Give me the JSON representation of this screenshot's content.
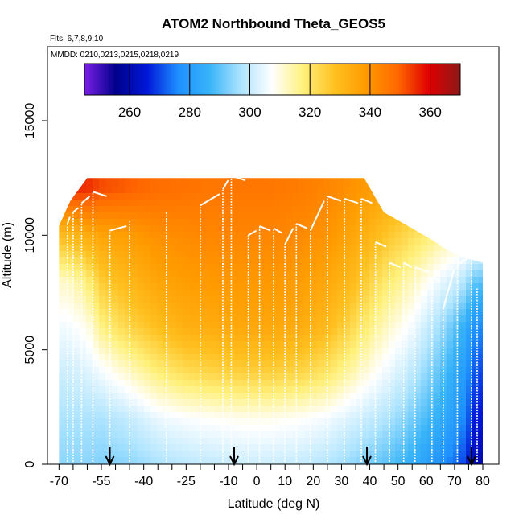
{
  "chart_data": {
    "type": "heatmap",
    "title": "ATOM2 Northbound Theta_GEOS5",
    "subtitle_flights": "Flts: 6,7,8,9,10",
    "subtitle_dates": "MMDD: 0210,0213,0215,0218,0219",
    "xlabel": "Latitude (deg N)",
    "ylabel": "Altitude (m)",
    "xlim": [
      -70,
      85
    ],
    "ylim": [
      0,
      18000
    ],
    "x_ticks": [
      "-70",
      "-55",
      "-40",
      "-25",
      "-10",
      "0",
      "10",
      "20",
      "30",
      "40",
      "50",
      "60",
      "70",
      "80"
    ],
    "x_tick_values": [
      -70,
      -55,
      -40,
      -25,
      -10,
      0,
      10,
      20,
      30,
      40,
      50,
      60,
      70,
      80
    ],
    "x_minor_ticks": [
      -65,
      -60,
      -50,
      -45,
      -35,
      -30,
      -20,
      -15,
      -5,
      5,
      15,
      25,
      35,
      45,
      55,
      65,
      75
    ],
    "y_ticks": [
      "0",
      "5000",
      "10000",
      "15000"
    ],
    "y_tick_values": [
      0,
      5000,
      10000,
      15000
    ],
    "colorbar": {
      "range": [
        245,
        370
      ],
      "ticks": [
        "260",
        "280",
        "300",
        "320",
        "340",
        "360"
      ],
      "tick_values": [
        260,
        280,
        300,
        320,
        340,
        360
      ],
      "separators": [
        260,
        280,
        300,
        320,
        340,
        360
      ],
      "colors": [
        "#7B1FE6",
        "#00008B",
        "#0018D8",
        "#1E90FF",
        "#38B4F8",
        "#AEE4FF",
        "#FFFFFF",
        "#FFF07A",
        "#FFC020",
        "#FF9A00",
        "#FF6800",
        "#E00000",
        "#8C1818"
      ]
    },
    "field": {
      "latitudes": [
        -67,
        -60,
        -55,
        -45,
        -35,
        -25,
        -15,
        -5,
        5,
        15,
        25,
        35,
        45,
        55,
        65,
        72,
        78
      ],
      "altitudes": [
        0,
        2000,
        4000,
        6000,
        8000,
        10000,
        12000
      ],
      "theta": [
        [
          294,
          294,
          293,
          294,
          297,
          299,
          300,
          301,
          301,
          300,
          298,
          294,
          290,
          285,
          277,
          272,
          260
        ],
        [
          297,
          297,
          297,
          300,
          305,
          307,
          308,
          309,
          309,
          308,
          306,
          302,
          298,
          292,
          285,
          278,
          265
        ],
        [
          301,
          303,
          306,
          312,
          318,
          322,
          324,
          325,
          325,
          324,
          320,
          313,
          306,
          299,
          290,
          282,
          270
        ],
        [
          306,
          309,
          317,
          324,
          329,
          333,
          334,
          335,
          335,
          334,
          330,
          322,
          313,
          306,
          296,
          288,
          276
        ],
        [
          312,
          318,
          326,
          331,
          336,
          338,
          339,
          339,
          339,
          338,
          335,
          329,
          320,
          313,
          305,
          300,
          290
        ],
        [
          330,
          334,
          336,
          338,
          341,
          342,
          343,
          343,
          343,
          342,
          340,
          335,
          328,
          322,
          316,
          314,
          310
        ],
        [
          355,
          355,
          352,
          350,
          348,
          347,
          346,
          346,
          346,
          345,
          343,
          340,
          336,
          330,
          325,
          322,
          318
        ]
      ],
      "top_altitude": [
        {
          "lat": -70,
          "alt": 10400
        },
        {
          "lat": -66,
          "alt": 11500
        },
        {
          "lat": -60,
          "alt": 12500
        },
        {
          "lat": 38,
          "alt": 12500
        },
        {
          "lat": 45,
          "alt": 11000
        },
        {
          "lat": 55,
          "alt": 10300
        },
        {
          "lat": 62,
          "alt": 9800
        },
        {
          "lat": 68,
          "alt": 9300
        },
        {
          "lat": 74,
          "alt": 9000
        },
        {
          "lat": 80,
          "alt": 8800
        },
        {
          "lat": 80,
          "alt": 0
        },
        {
          "lat": -70,
          "alt": 0
        }
      ]
    },
    "flight_profiles": [
      {
        "lat": -67,
        "top": 10500
      },
      {
        "lat": -65,
        "top": 11000
      },
      {
        "lat": -62,
        "top": 11400
      },
      {
        "lat": -58,
        "top": 11900
      },
      {
        "lat": -52,
        "top": 10200
      },
      {
        "lat": -45,
        "top": 10600
      },
      {
        "lat": -32,
        "top": 11000
      },
      {
        "lat": -20,
        "top": 11300
      },
      {
        "lat": -12,
        "top": 12000
      },
      {
        "lat": -9,
        "top": 12600
      },
      {
        "lat": -3,
        "top": 10000
      },
      {
        "lat": 1,
        "top": 10400
      },
      {
        "lat": 6,
        "top": 10300
      },
      {
        "lat": 10,
        "top": 9600
      },
      {
        "lat": 14,
        "top": 10500
      },
      {
        "lat": 19,
        "top": 10200
      },
      {
        "lat": 25,
        "top": 11700
      },
      {
        "lat": 31,
        "top": 11600
      },
      {
        "lat": 37,
        "top": 11600
      },
      {
        "lat": 42,
        "top": 9700
      },
      {
        "lat": 47,
        "top": 8800
      },
      {
        "lat": 52,
        "top": 8800
      },
      {
        "lat": 56,
        "top": 8600
      },
      {
        "lat": 62,
        "top": 8200
      },
      {
        "lat": 66,
        "top": 6800
      },
      {
        "lat": 71,
        "top": 8700
      },
      {
        "lat": 76,
        "top": 9200
      },
      {
        "lat": 78,
        "top": 7700
      }
    ],
    "arrows": [
      -52,
      -8,
      39,
      76
    ]
  }
}
